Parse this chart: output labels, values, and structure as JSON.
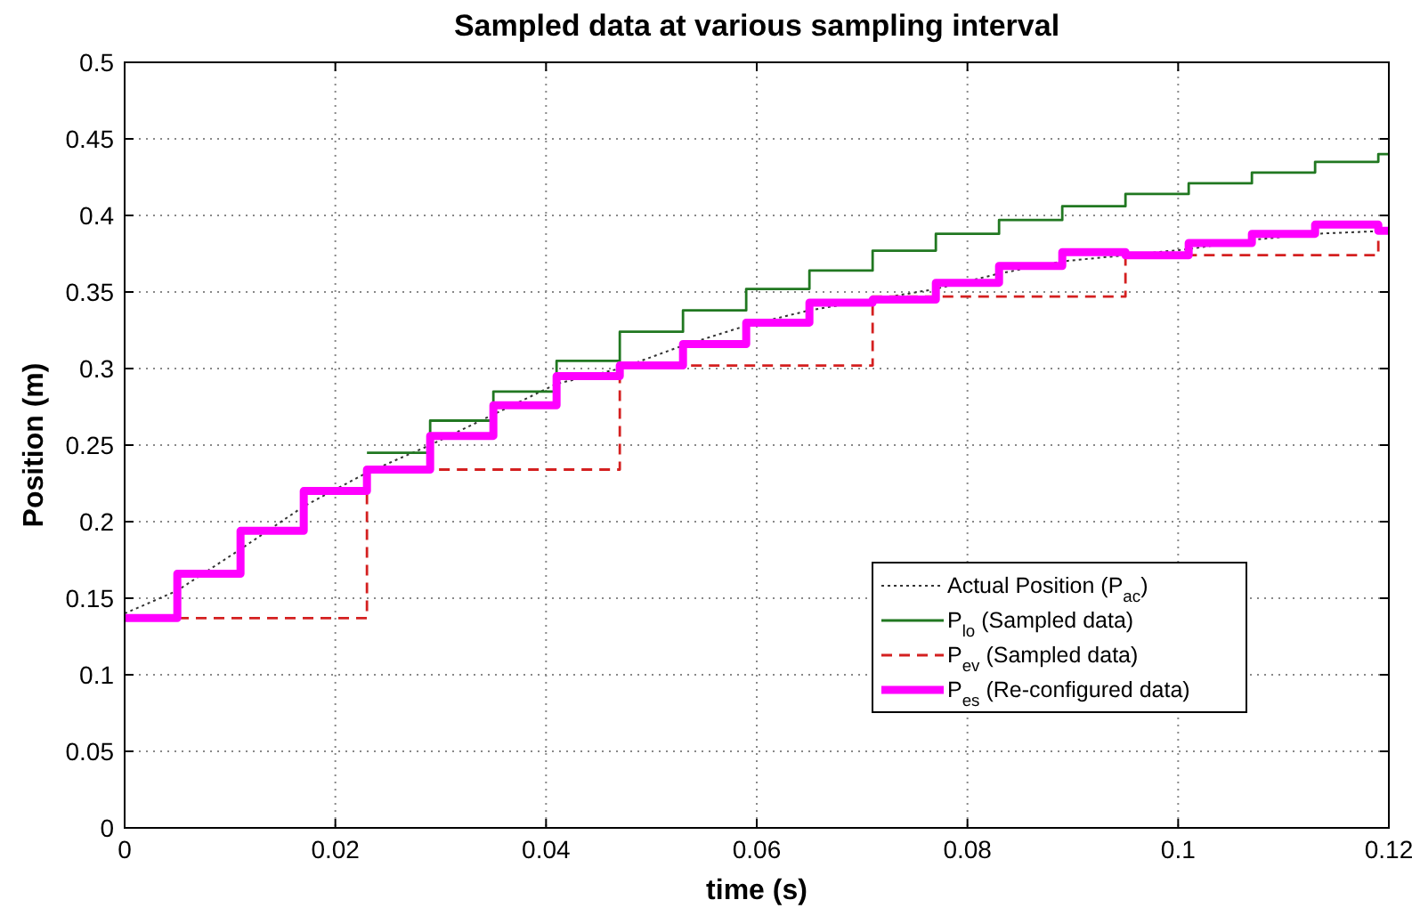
{
  "chart_data": {
    "type": "step",
    "title": "Sampled data at various sampling interval",
    "xlabel": "time (s)",
    "ylabel": "Position (m)",
    "xlim": [
      0,
      0.12
    ],
    "xticks": [
      0,
      0.02,
      0.04,
      0.06,
      0.08,
      0.1,
      0.12
    ],
    "ylim": [
      0,
      0.5
    ],
    "yticks": [
      0,
      0.05,
      0.1,
      0.15,
      0.2,
      0.25,
      0.3,
      0.35,
      0.4,
      0.45,
      0.5
    ],
    "grid": true,
    "legend": "bottom right",
    "series": [
      {
        "name": "Actual Position (P$_{ac}$)",
        "type": "line",
        "line_style": "dotted",
        "color": "#333333",
        "x": [
          0,
          0.005,
          0.011,
          0.017,
          0.023,
          0.029,
          0.035,
          0.041,
          0.047,
          0.053,
          0.059,
          0.065,
          0.071,
          0.077,
          0.083,
          0.089,
          0.095,
          0.101,
          0.107,
          0.113,
          0.12
        ],
        "values": [
          0.14,
          0.155,
          0.182,
          0.21,
          0.232,
          0.25,
          0.27,
          0.29,
          0.3,
          0.315,
          0.328,
          0.338,
          0.345,
          0.352,
          0.362,
          0.37,
          0.374,
          0.378,
          0.384,
          0.388,
          0.39
        ]
      },
      {
        "name": "P$_{lo}$ (Sampled data)",
        "line_style": "solid",
        "color": "#217821",
        "x": [
          0.023,
          0.029,
          0.035,
          0.041,
          0.047,
          0.053,
          0.059,
          0.065,
          0.071,
          0.077,
          0.083,
          0.089,
          0.095,
          0.101,
          0.107,
          0.113,
          0.119,
          0.12
        ],
        "values": [
          0.245,
          0.266,
          0.285,
          0.305,
          0.324,
          0.338,
          0.352,
          0.364,
          0.377,
          0.388,
          0.397,
          0.406,
          0.414,
          0.421,
          0.428,
          0.435,
          0.44,
          0.44
        ]
      },
      {
        "name": "P$_{ev}$ (Sampled data)",
        "line_style": "dashed",
        "color": "#d42020",
        "x": [
          0,
          0.023,
          0.047,
          0.071,
          0.095,
          0.119,
          0.12
        ],
        "values": [
          0.137,
          0.234,
          0.302,
          0.347,
          0.374,
          0.39,
          0.39
        ]
      },
      {
        "name": "P$_{es}$ (Re-configured data)",
        "line_style": "solid",
        "color": "#ff00ff",
        "x": [
          0,
          0.005,
          0.011,
          0.017,
          0.023,
          0.029,
          0.035,
          0.041,
          0.047,
          0.053,
          0.059,
          0.065,
          0.071,
          0.077,
          0.083,
          0.089,
          0.095,
          0.101,
          0.107,
          0.113,
          0.119,
          0.12
        ],
        "values": [
          0.137,
          0.166,
          0.194,
          0.22,
          0.234,
          0.256,
          0.276,
          0.295,
          0.302,
          0.316,
          0.33,
          0.343,
          0.345,
          0.356,
          0.367,
          0.376,
          0.374,
          0.382,
          0.388,
          0.394,
          0.39,
          0.39
        ]
      }
    ]
  }
}
